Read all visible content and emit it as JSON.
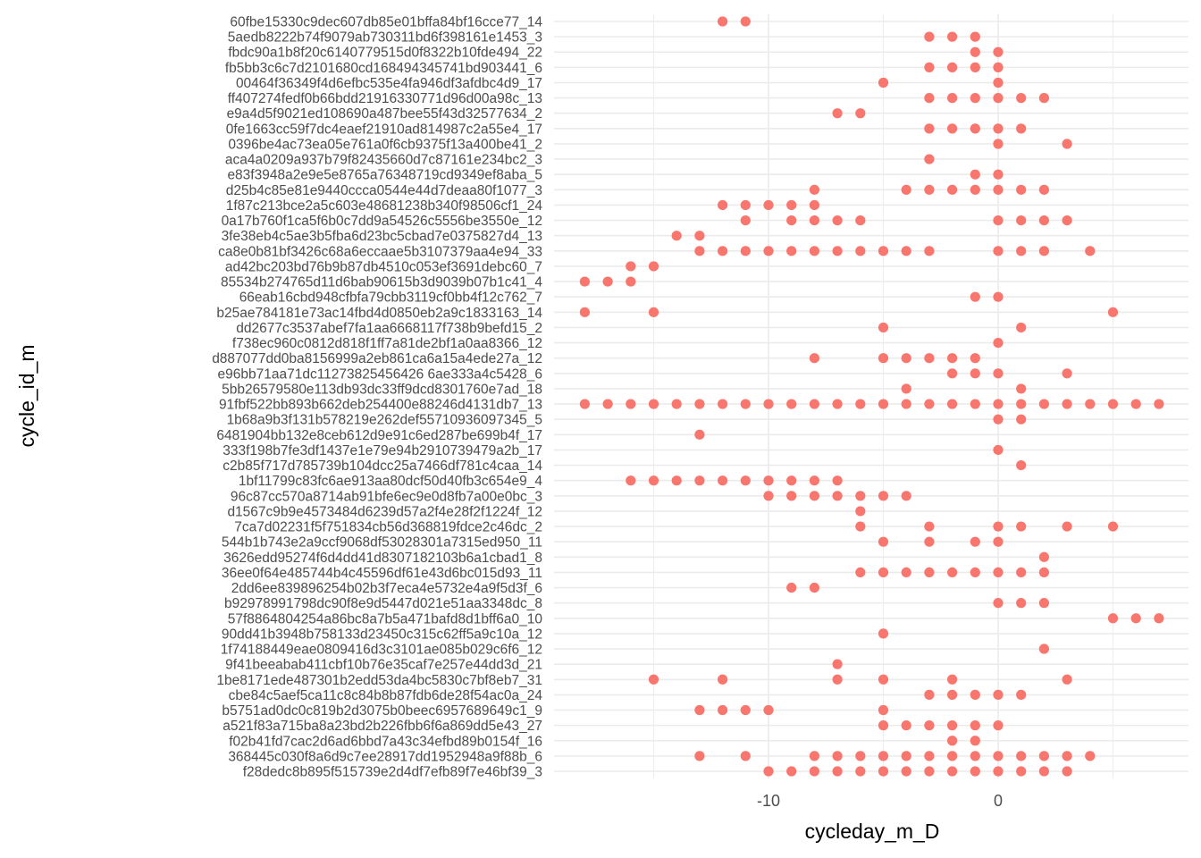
{
  "chart_data": {
    "type": "scatter",
    "xlabel": "cycleday_m_D",
    "ylabel": "cycle_id_m",
    "xlim": [
      -18.5,
      7.8
    ],
    "x_ticks": [
      -10,
      0
    ],
    "x_tick_labels": [
      "-10",
      "0"
    ],
    "grid": true,
    "point_color": "#F8766D",
    "rows": [
      {
        "label": "60fbe15330c9dec607db85e01bffa84bf16cce77_14",
        "x": [
          -12,
          -11
        ]
      },
      {
        "label": "5aedb8222b74f9079ab730311bd6f398161e1453_3",
        "x": [
          -3,
          -2,
          -1
        ]
      },
      {
        "label": "fbdc90a1b8f20c6140779515d0f8322b10fde494_22",
        "x": [
          -1,
          0
        ]
      },
      {
        "label": "fb5bb3c6c7d2101680cd168494345741bd903441_6",
        "x": [
          -3,
          -2,
          -1,
          0
        ]
      },
      {
        "label": "00464f36349f4d6efbc535e4fa946df3afdbc4d9_17",
        "x": [
          -5,
          0
        ]
      },
      {
        "label": "ff407274fedf0b66bdd21916330771d96d00a98c_13",
        "x": [
          -3,
          -2,
          -1,
          0,
          1,
          2
        ]
      },
      {
        "label": "e9a4d5f9021ed108690a487bee55f43d32577634_2",
        "x": [
          -7,
          -6
        ]
      },
      {
        "label": "0fe1663cc59f7dc4eaef21910ad814987c2a55e4_17",
        "x": [
          -3,
          -2,
          -1,
          0,
          1
        ]
      },
      {
        "label": "0396be4ac73ea05e761a0f6cb9375f13a400be41_2",
        "x": [
          0,
          3
        ]
      },
      {
        "label": "aca4a0209a937b79f82435660d7c87161e234bc2_3",
        "x": [
          -3
        ]
      },
      {
        "label": "e83f3948a2e9e5e8765a76348719cd9349ef8aba_5",
        "x": [
          -1,
          0
        ]
      },
      {
        "label": "d25b4c85e81e9440ccca0544e44d7deaa80f1077_3",
        "x": [
          -8,
          -4,
          -3,
          -2,
          -1,
          0,
          1,
          2
        ]
      },
      {
        "label": "1f87c213bce2a5c603e48681238b340f98506cf1_24",
        "x": [
          -12,
          -11,
          -10,
          -9,
          -8
        ]
      },
      {
        "label": "0a17b760f1ca5f6b0c7dd9a54526c5556be3550e_12",
        "x": [
          -11,
          -9,
          -8,
          -7,
          -6,
          0,
          1,
          2,
          3
        ]
      },
      {
        "label": "3fe38eb4c5ae3b5fba6d23bc5cbad7e0375827d4_13",
        "x": [
          -14,
          -13
        ]
      },
      {
        "label": "ca8e0b81bf3426c68a6eccaae5b3107379aa4e94_33",
        "x": [
          -13,
          -12,
          -11,
          -10,
          -9,
          -8,
          -7,
          -6,
          -5,
          -4,
          -3,
          0,
          1,
          2,
          4
        ]
      },
      {
        "label": "ad42bc203bd76b9b87db4510c053ef3691debc60_7",
        "x": [
          -16,
          -15
        ]
      },
      {
        "label": "85534b274765d11d6bab90615b3d9039b07b1c41_4",
        "x": [
          -18,
          -17,
          -16
        ]
      },
      {
        "label": "66eab16cbd948cfbfa79cbb3119cf0bb4f12c762_7",
        "x": [
          -1,
          0
        ]
      },
      {
        "label": "b25ae784181e73ac14fbd4d0850eb2a9c1833163_14",
        "x": [
          -18,
          -15,
          5
        ]
      },
      {
        "label": "dd2677c3537abef7fa1aa6668117f738b9befd15_2",
        "x": [
          -5,
          1
        ]
      },
      {
        "label": "f738ec960c0812d818f1ff7a81de2bf1a0aa8366_12",
        "x": [
          0
        ]
      },
      {
        "label": "d887077dd0ba8156999a2eb861ca6a15a4ede27a_12",
        "x": [
          -8,
          -5,
          -4,
          -3,
          -2,
          -1
        ]
      },
      {
        "label": "e96bb71aa71dc11273825456426 6ae333a4c5428_6",
        "x": [
          -2,
          -1,
          0,
          3
        ]
      },
      {
        "label": "5bb26579580e113db93dc33ff9dcd8301760e7ad_18",
        "x": [
          -4,
          1
        ]
      },
      {
        "label": "91fbf522bb893b662deb254400e88246d4131db7_13",
        "x": [
          -18,
          -17,
          -16,
          -15,
          -14,
          -13,
          -12,
          -11,
          -10,
          -9,
          -8,
          -7,
          -6,
          -5,
          -4,
          -3,
          -2,
          -1,
          0,
          1,
          2,
          3,
          4,
          5,
          6,
          7
        ]
      },
      {
        "label": "1b68a9b3f131b578219e262def55710936097345_5",
        "x": [
          0,
          1
        ]
      },
      {
        "label": "6481904bb132e8ceb612d9e91c6ed287be699b4f_17",
        "x": [
          -13
        ]
      },
      {
        "label": "333f198b7fe3df1437e1e79e94b2910739479a2b_17",
        "x": [
          0
        ]
      },
      {
        "label": "c2b85f717d785739b104dcc25a7466df781c4caa_14",
        "x": [
          1
        ]
      },
      {
        "label": "1bf11799c83fc6ae913aa80dcf50d40fb3c654e9_4",
        "x": [
          -16,
          -15,
          -14,
          -13,
          -12,
          -11,
          -10,
          -9,
          -8,
          -7
        ]
      },
      {
        "label": "96c87cc570a8714ab91bfe6ec9e0d8fb7a00e0bc_3",
        "x": [
          -10,
          -9,
          -8,
          -7,
          -6,
          -5,
          -4
        ]
      },
      {
        "label": "d1567c9b9e4573484d6239d57a2f4e28f2f1224f_12",
        "x": [
          -6
        ]
      },
      {
        "label": "7ca7d02231f5f751834cb56d368819fdce2c46dc_2",
        "x": [
          -6,
          -3,
          0,
          1,
          3,
          5
        ]
      },
      {
        "label": "544b1b743e2a9ccf9068df53028301a7315ed950_11",
        "x": [
          -5,
          -3,
          -1,
          0
        ]
      },
      {
        "label": "3626edd95274f6d4dd41d8307182103b6a1cbad1_8",
        "x": [
          2
        ]
      },
      {
        "label": "36ee0f64e485744b4c45596df61e43d6bc015d93_11",
        "x": [
          -6,
          -5,
          -4,
          -3,
          -2,
          -1,
          0,
          1,
          2
        ]
      },
      {
        "label": "2dd6ee839896254b02b3f7eca4e5732e4a9f5d3f_6",
        "x": [
          -9,
          -8
        ]
      },
      {
        "label": "b92978991798dc90f8e9d5447d021e51aa3348dc_8",
        "x": [
          0,
          1,
          2
        ]
      },
      {
        "label": "57f8864804254a86bc8a7b5a471bafd8d1bff6a0_10",
        "x": [
          5,
          6,
          7
        ]
      },
      {
        "label": "90dd41b3948b758133d23450c315c62ff5a9c10a_12",
        "x": [
          -5
        ]
      },
      {
        "label": "1f74188449eae0809416d3c3101ae085b029c6f6_12",
        "x": [
          2
        ]
      },
      {
        "label": "9f41beeabab411cbf10b76e35caf7e257e44dd3d_21",
        "x": [
          -7
        ]
      },
      {
        "label": "1be8171ede487301b2edd53da4bc5830c7bf8eb7_31",
        "x": [
          -15,
          -12,
          -7,
          -5,
          -2,
          3
        ]
      },
      {
        "label": "cbe84c5aef5ca11c8c84b8b87fdb6de28f54ac0a_24",
        "x": [
          -3,
          -2,
          -1,
          0,
          1
        ]
      },
      {
        "label": "b5751ad0dc0c819b2d3075b0beec6957689649c1_9",
        "x": [
          -13,
          -12,
          -11,
          -10,
          -5
        ]
      },
      {
        "label": "a521f83a715ba8a23bd2b226fbb6f6a869dd5e43_27",
        "x": [
          -5,
          -4,
          -3,
          -2,
          -1,
          0
        ]
      },
      {
        "label": "f02b41fd7cac2d6ad6bbd7a43c34efbd89b0154f_16",
        "x": [
          -2,
          -1
        ]
      },
      {
        "label": "368445c030f8a6d9c7ee28917dd1952948a9f88b_6",
        "x": [
          -13,
          -11,
          -8,
          -7,
          -6,
          -5,
          -4,
          -3,
          -2,
          -1,
          0,
          1,
          2,
          3,
          4
        ]
      },
      {
        "label": "f28dedc8b895f515739e2d4df7efb89f7e46bf39_3",
        "x": [
          -10,
          -9,
          -8,
          -7,
          -6,
          -5,
          -4,
          -3,
          -2,
          -1,
          0,
          1,
          2,
          3
        ]
      }
    ]
  }
}
